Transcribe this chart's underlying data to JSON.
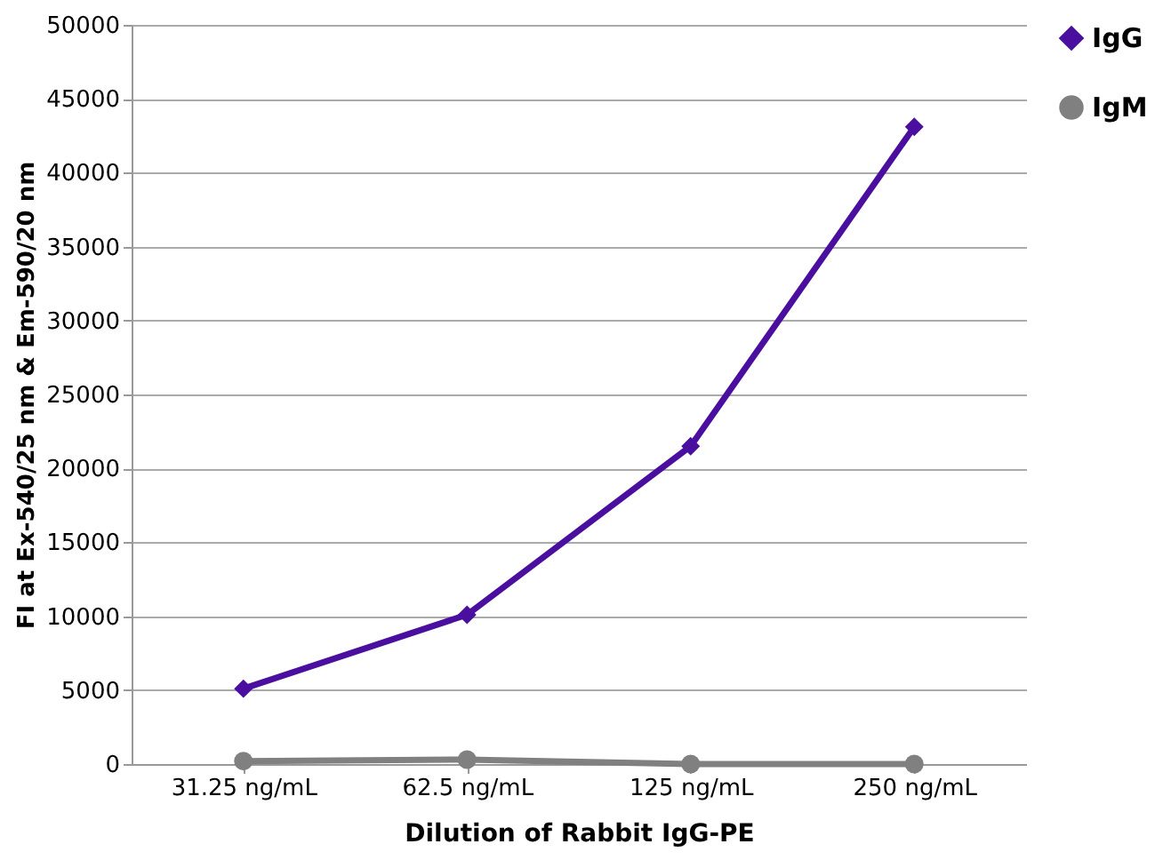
{
  "chart_data": {
    "type": "line",
    "xlabel": "Dilution of Rabbit IgG-PE",
    "ylabel": "FI at Ex-540/25 nm & Em-590/20 nm",
    "categories": [
      "31.25 ng/mL",
      "62.5 ng/mL",
      "125 ng/mL",
      "250 ng/mL"
    ],
    "series": [
      {
        "name": "IgG",
        "color": "#4b0fa0",
        "marker": "diamond",
        "values": [
          5100,
          10100,
          21500,
          43100
        ]
      },
      {
        "name": "IgM",
        "color": "#808080",
        "marker": "circle",
        "values": [
          200,
          300,
          0,
          0
        ]
      }
    ],
    "ylim": [
      0,
      50000
    ],
    "yticks": [
      0,
      5000,
      10000,
      15000,
      20000,
      25000,
      30000,
      35000,
      40000,
      45000,
      50000
    ],
    "grid": "y",
    "legend": "right"
  }
}
